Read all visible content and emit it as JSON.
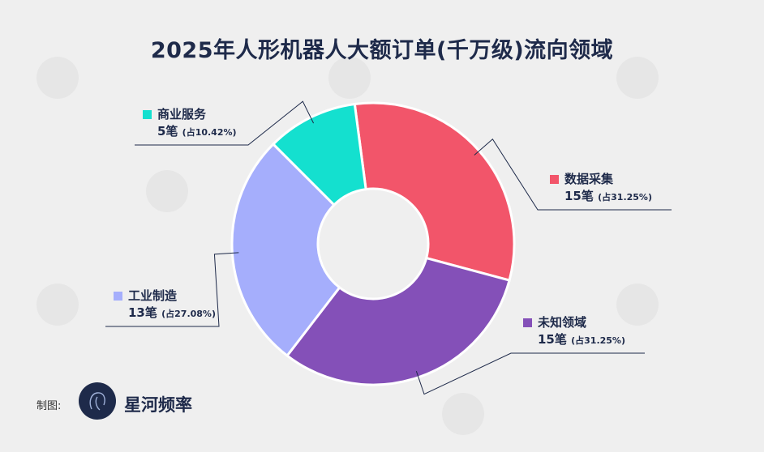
{
  "title": "2025年人形机器人大额订单(千万级)流向领域",
  "credit_label": "制图:",
  "brand_name": "星河频率",
  "chart_data": {
    "type": "donut",
    "title": "2025年人形机器人大额订单(千万级)流向领域",
    "total": 48,
    "slices": [
      {
        "name": "数据采集",
        "value": 15,
        "count_label": "15笔",
        "pct_label": "(占31.25%)",
        "color": "#f2556a"
      },
      {
        "name": "未知领域",
        "value": 15,
        "count_label": "15笔",
        "pct_label": "(占31.25%)",
        "color": "#8450b8"
      },
      {
        "name": "工业制造",
        "value": 13,
        "count_label": "13笔",
        "pct_label": "(占27.08%)",
        "color": "#a5aefc"
      },
      {
        "name": "商业服务",
        "value": 5,
        "count_label": "5笔",
        "pct_label": "(占10.42%)",
        "color": "#14e0cf"
      }
    ]
  }
}
